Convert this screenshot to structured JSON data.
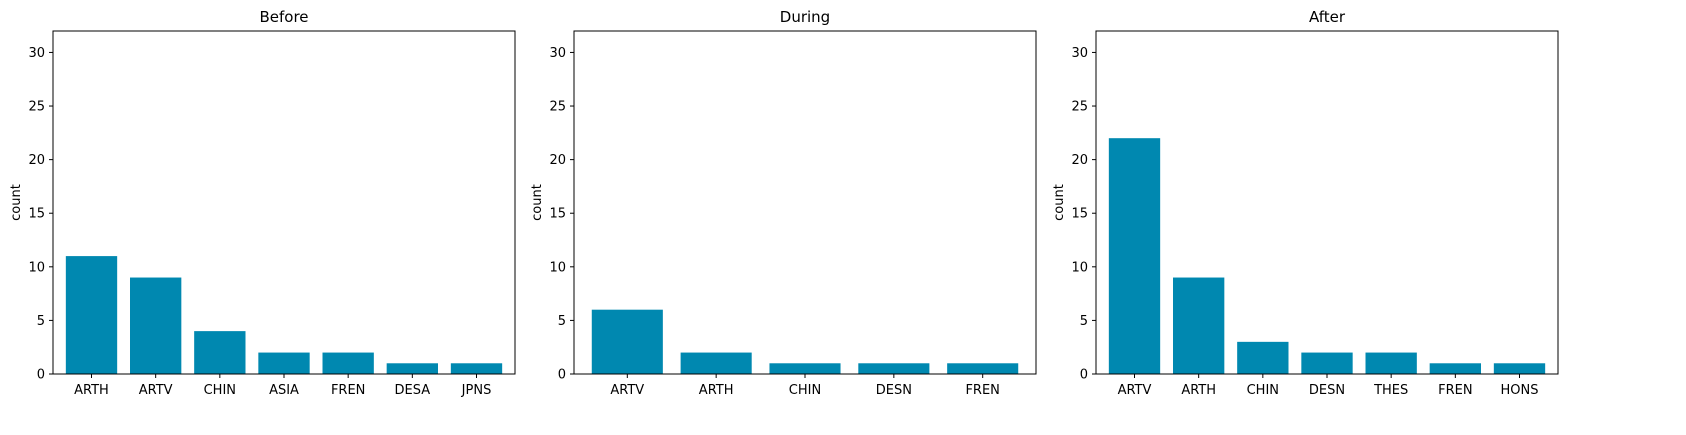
{
  "style": {
    "bar_color": "#0088b0",
    "axis_color": "#000000",
    "background": "#ffffff"
  },
  "chart_data": [
    {
      "type": "bar",
      "title": "Before",
      "xlabel": "",
      "ylabel": "count",
      "categories": [
        "ARTH",
        "ARTV",
        "CHIN",
        "ASIA",
        "FREN",
        "DESA",
        "JPNS"
      ],
      "values": [
        11,
        9,
        4,
        2,
        2,
        1,
        1
      ],
      "ylim": [
        0,
        32
      ],
      "yticks": [
        0,
        5,
        10,
        15,
        20,
        25,
        30
      ],
      "grid": false
    },
    {
      "type": "bar",
      "title": "During",
      "xlabel": "",
      "ylabel": "count",
      "categories": [
        "ARTV",
        "ARTH",
        "CHIN",
        "DESN",
        "FREN"
      ],
      "values": [
        6,
        2,
        1,
        1,
        1
      ],
      "ylim": [
        0,
        32
      ],
      "yticks": [
        0,
        5,
        10,
        15,
        20,
        25,
        30
      ],
      "grid": false
    },
    {
      "type": "bar",
      "title": "After",
      "xlabel": "",
      "ylabel": "count",
      "categories": [
        "ARTV",
        "ARTH",
        "CHIN",
        "DESN",
        "THES",
        "FREN",
        "HONS"
      ],
      "values": [
        22,
        9,
        3,
        2,
        2,
        1,
        1
      ],
      "ylim": [
        0,
        32
      ],
      "yticks": [
        0,
        5,
        10,
        15,
        20,
        25,
        30
      ],
      "grid": false
    }
  ]
}
